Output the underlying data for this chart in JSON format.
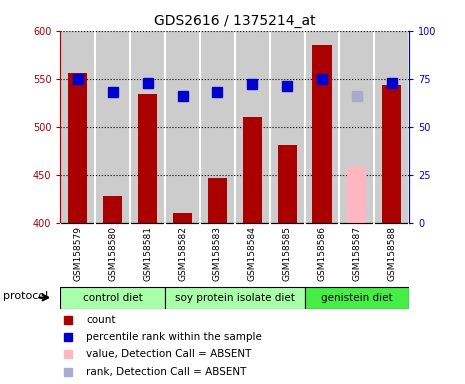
{
  "title": "GDS2616 / 1375214_at",
  "samples": [
    "GSM158579",
    "GSM158580",
    "GSM158581",
    "GSM158582",
    "GSM158583",
    "GSM158584",
    "GSM158585",
    "GSM158586",
    "GSM158587",
    "GSM158588"
  ],
  "bar_values": [
    556,
    428,
    534,
    410,
    447,
    510,
    481,
    585,
    null,
    543
  ],
  "bar_absent_values": [
    null,
    null,
    null,
    null,
    null,
    null,
    null,
    null,
    458,
    null
  ],
  "rank_values": [
    75,
    68,
    73,
    66,
    68,
    72,
    71,
    75,
    null,
    73
  ],
  "rank_absent_values": [
    null,
    null,
    null,
    null,
    null,
    null,
    null,
    null,
    66,
    null
  ],
  "bar_color": "#AA0000",
  "bar_absent_color": "#FFB6C1",
  "rank_color": "#0000CC",
  "rank_absent_color": "#AAAACC",
  "ylim_left": [
    400,
    600
  ],
  "ylim_right": [
    0,
    100
  ],
  "yticks_left": [
    400,
    450,
    500,
    550,
    600
  ],
  "yticks_right": [
    0,
    25,
    50,
    75,
    100
  ],
  "group_defs": [
    {
      "label": "control diet",
      "cols": [
        0,
        1,
        2
      ],
      "color": "#AAFFAA"
    },
    {
      "label": "soy protein isolate diet",
      "cols": [
        3,
        4,
        5,
        6
      ],
      "color": "#AAFFAA"
    },
    {
      "label": "genistein diet",
      "cols": [
        7,
        8,
        9
      ],
      "color": "#44EE44"
    }
  ],
  "legend_items": [
    {
      "label": "count",
      "color": "#AA0000"
    },
    {
      "label": "percentile rank within the sample",
      "color": "#0000CC"
    },
    {
      "label": "value, Detection Call = ABSENT",
      "color": "#FFB6C1"
    },
    {
      "label": "rank, Detection Call = ABSENT",
      "color": "#AAAACC"
    }
  ],
  "protocol_label": "protocol",
  "bg_color": "#CCCCCC",
  "bar_width": 0.55,
  "rank_marker_size": 7,
  "col_separator_color": "white",
  "grid_color": "black",
  "title_fontsize": 10,
  "tick_fontsize": 7,
  "label_fontsize": 8
}
